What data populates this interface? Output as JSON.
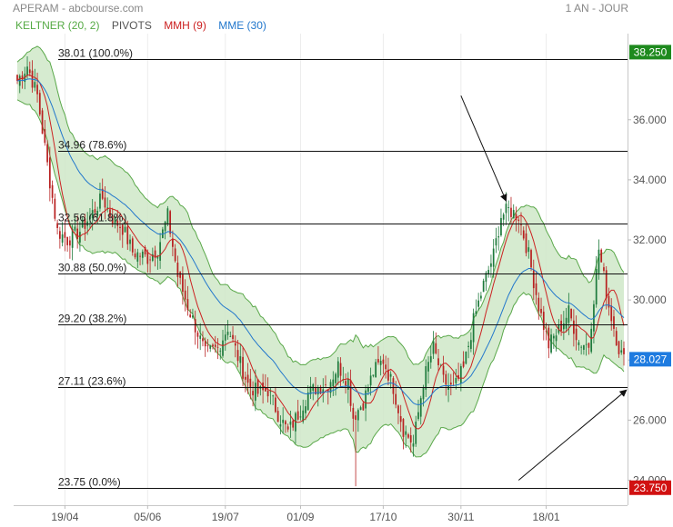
{
  "header": {
    "title": "APERAM - abcbourse.com",
    "period": "1 AN - JOUR"
  },
  "legend": [
    {
      "label": "KELTNER (20, 2)",
      "color": "#55aa44"
    },
    {
      "label": "PIVOTS",
      "color": "#555555"
    },
    {
      "label": "MMH (9)",
      "color": "#cc2222"
    },
    {
      "label": "MME (30)",
      "color": "#2277cc"
    }
  ],
  "chart_data": {
    "type": "candlestick",
    "title": "APERAM - abcbourse.com",
    "period": "1 AN - JOUR",
    "ylim": [
      23.6,
      39.3
    ],
    "y_ticks": [
      "24.000",
      "26.000",
      "28.000",
      "30.000",
      "32.000",
      "34.000",
      "36.000"
    ],
    "x_ticks": [
      {
        "label": "19/04",
        "i": 19
      },
      {
        "label": "05/06",
        "i": 52
      },
      {
        "label": "19/07",
        "i": 83
      },
      {
        "label": "01/09",
        "i": 113
      },
      {
        "label": "17/10",
        "i": 146
      },
      {
        "label": "30/11",
        "i": 177
      },
      {
        "label": "18/01",
        "i": 211
      }
    ],
    "num_days": 243,
    "close_anchors": [
      [
        0,
        37.3
      ],
      [
        4,
        37.8
      ],
      [
        8,
        36.8
      ],
      [
        12,
        34.5
      ],
      [
        16,
        32.3
      ],
      [
        20,
        32.0
      ],
      [
        25,
        32.3
      ],
      [
        30,
        32.9
      ],
      [
        34,
        33.4
      ],
      [
        38,
        32.7
      ],
      [
        42,
        32.4
      ],
      [
        46,
        31.6
      ],
      [
        52,
        31.4
      ],
      [
        56,
        31.7
      ],
      [
        60,
        32.8
      ],
      [
        64,
        30.8
      ],
      [
        68,
        29.8
      ],
      [
        72,
        28.9
      ],
      [
        75,
        28.2
      ],
      [
        80,
        28.4
      ],
      [
        84,
        29.1
      ],
      [
        88,
        28.1
      ],
      [
        92,
        27.2
      ],
      [
        96,
        26.9
      ],
      [
        100,
        27.0
      ],
      [
        104,
        26.2
      ],
      [
        108,
        25.6
      ],
      [
        112,
        26.2
      ],
      [
        116,
        26.9
      ],
      [
        120,
        27.1
      ],
      [
        124,
        27.2
      ],
      [
        128,
        27.8
      ],
      [
        132,
        27.3
      ],
      [
        134,
        26.1
      ],
      [
        138,
        26.6
      ],
      [
        142,
        27.6
      ],
      [
        146,
        28.0
      ],
      [
        150,
        27.1
      ],
      [
        154,
        25.7
      ],
      [
        158,
        25.2
      ],
      [
        162,
        27.3
      ],
      [
        166,
        28.4
      ],
      [
        170,
        27.3
      ],
      [
        174,
        27.0
      ],
      [
        178,
        27.7
      ],
      [
        182,
        29.3
      ],
      [
        186,
        30.5
      ],
      [
        190,
        31.5
      ],
      [
        193,
        32.8
      ],
      [
        196,
        33.0
      ],
      [
        200,
        32.8
      ],
      [
        204,
        31.5
      ],
      [
        208,
        29.8
      ],
      [
        212,
        28.5
      ],
      [
        216,
        29.0
      ],
      [
        220,
        29.6
      ],
      [
        224,
        28.6
      ],
      [
        228,
        28.5
      ],
      [
        232,
        31.7
      ],
      [
        236,
        29.8
      ],
      [
        240,
        28.4
      ],
      [
        242,
        28.0
      ]
    ],
    "pivots": [
      {
        "label": "38.01  (100.0%)",
        "value": 38.01
      },
      {
        "label": "34.96  (78.6%)",
        "value": 34.96
      },
      {
        "label": "32.56  (61.8%)",
        "value": 32.56
      },
      {
        "label": "30.88  (50.0%)",
        "value": 30.88
      },
      {
        "label": "29.20  (38.2%)",
        "value": 29.2
      },
      {
        "label": "27.11  (23.6%)",
        "value": 27.11
      },
      {
        "label": "23.75  (0.0%)",
        "value": 23.75
      }
    ],
    "price_tags": [
      {
        "label": "38.250",
        "value": 38.25,
        "color": "#1e8a1e"
      },
      {
        "label": "28.027",
        "value": 28.027,
        "color": "#1e7be0"
      },
      {
        "label": "23.750",
        "value": 23.75,
        "color": "#d11111"
      }
    ],
    "indicators": {
      "keltner_period": 20,
      "keltner_mult": 2,
      "mmh_period": 9,
      "mme_period": 30
    },
    "colors": {
      "keltner_fill": "#cfe8c8",
      "keltner_line": "#5aa84a",
      "up": "#1e7a3c",
      "down": "#b82020",
      "mmh": "#cc2222",
      "mme": "#2277cc",
      "pivot": "#111111",
      "grid": "#ececec"
    },
    "arrows": [
      {
        "from": [
          177,
          36.8
        ],
        "to": [
          195,
          33.3
        ]
      },
      {
        "from": [
          200,
          24.0
        ],
        "to": [
          243,
          27.0
        ]
      }
    ]
  }
}
